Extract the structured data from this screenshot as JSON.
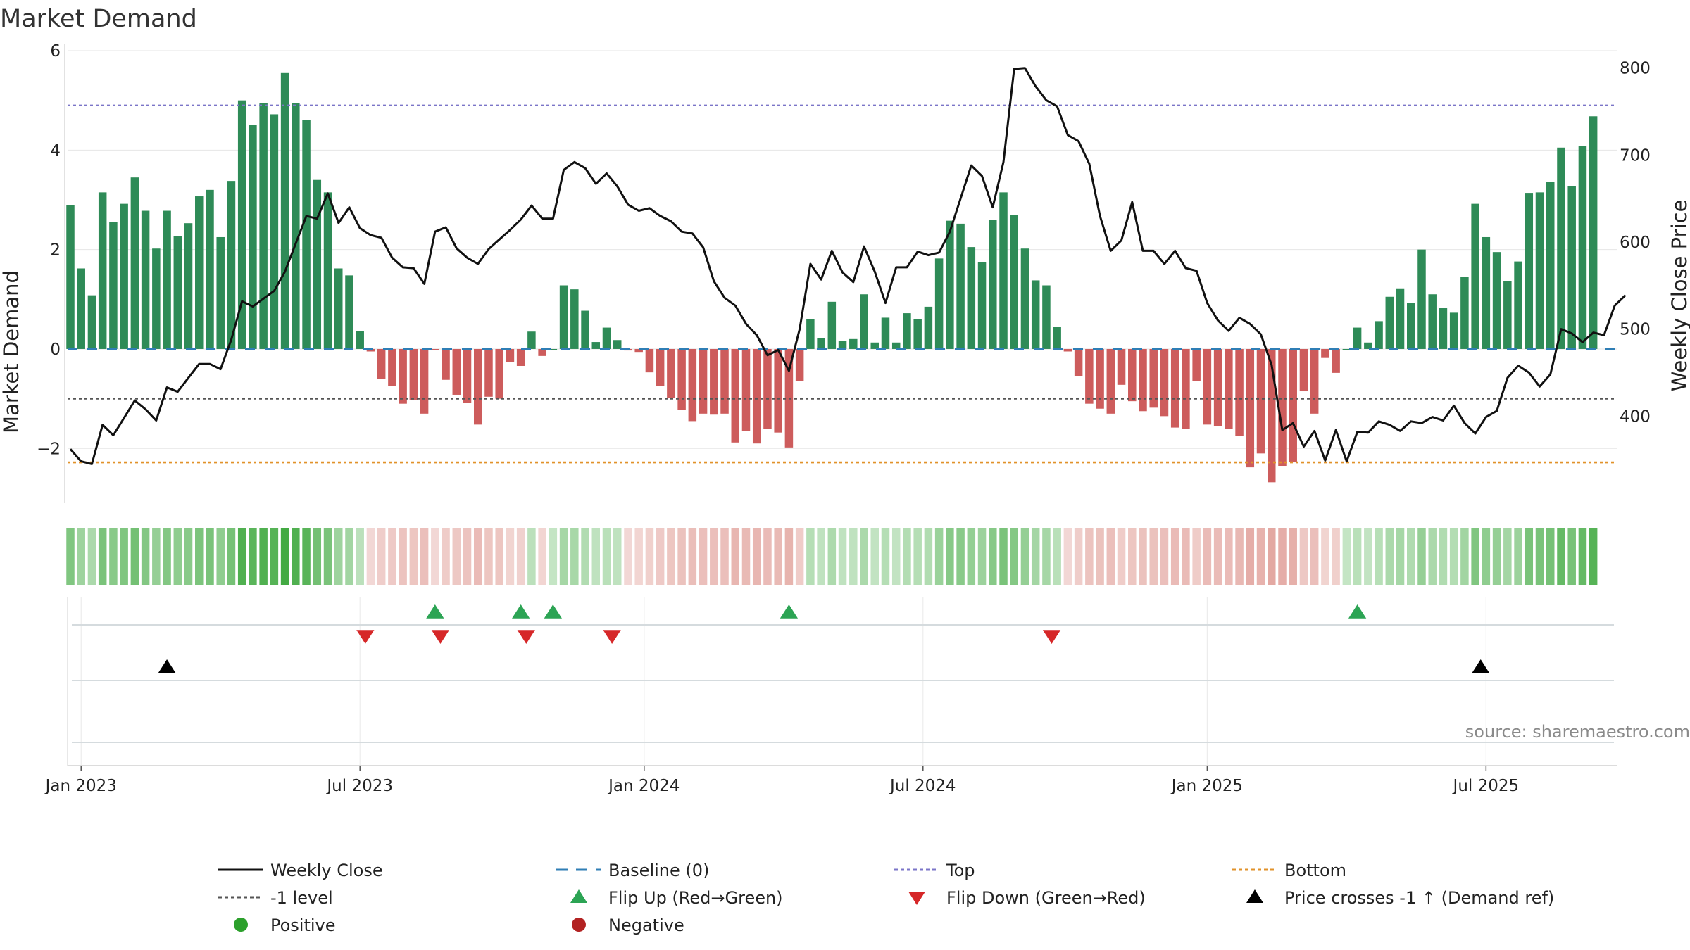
{
  "chart_data": {
    "type": "bar",
    "title": "Market Demand",
    "ylabel_left": "Market Demand",
    "ylabel_right": "Weekly Close Price",
    "ylim_left": [
      -3.1,
      6.0
    ],
    "ylim_right": [
      300,
      820
    ],
    "yticks_left": [
      {
        "v": -2,
        "label": "−2"
      },
      {
        "v": 0,
        "label": "0"
      },
      {
        "v": 2,
        "label": "2"
      },
      {
        "v": 4,
        "label": "4"
      },
      {
        "v": 6,
        "label": "6"
      }
    ],
    "yticks_right": [
      {
        "v": 400,
        "label": "400"
      },
      {
        "v": 500,
        "label": "500"
      },
      {
        "v": 600,
        "label": "600"
      },
      {
        "v": 700,
        "label": "700"
      },
      {
        "v": 800,
        "label": "800"
      }
    ],
    "x_start": "2022-12-26",
    "weeks": 145,
    "x_ticks": [
      {
        "week": 1,
        "label": "Jan 2023"
      },
      {
        "week": 27,
        "label": "Jul 2023"
      },
      {
        "week": 53.5,
        "label": "Jan 2024"
      },
      {
        "week": 79.5,
        "label": "Jul 2024"
      },
      {
        "week": 106,
        "label": "Jan 2025"
      },
      {
        "week": 132,
        "label": "Jul 2025"
      }
    ],
    "top_level": 4.9,
    "bottom_level": -2.28,
    "minus_one_level": -1,
    "market_demand": [
      2.9,
      1.62,
      1.08,
      3.15,
      2.55,
      2.92,
      3.45,
      2.78,
      2.02,
      2.78,
      2.27,
      2.53,
      3.07,
      3.2,
      2.25,
      3.38,
      5.0,
      4.5,
      4.94,
      4.72,
      5.55,
      4.95,
      4.6,
      3.4,
      3.15,
      1.62,
      1.48,
      0.36,
      -0.05,
      -0.6,
      -0.74,
      -1.1,
      -1.02,
      -1.3,
      -0.02,
      -0.62,
      -0.92,
      -1.08,
      -1.52,
      -0.96,
      -1.0,
      -0.26,
      -0.34,
      0.35,
      -0.14,
      0.0,
      1.28,
      1.2,
      0.77,
      0.14,
      0.43,
      0.18,
      -0.03,
      -0.06,
      -0.47,
      -0.74,
      -0.98,
      -1.22,
      -1.45,
      -1.3,
      -1.32,
      -1.3,
      -1.88,
      -1.65,
      -1.9,
      -1.6,
      -1.68,
      -1.98,
      -0.65,
      0.6,
      0.22,
      0.95,
      0.16,
      0.2,
      1.1,
      0.13,
      0.63,
      0.13,
      0.72,
      0.6,
      0.85,
      1.82,
      2.58,
      2.52,
      2.05,
      1.75,
      2.6,
      3.15,
      2.7,
      2.02,
      1.38,
      1.28,
      0.45,
      -0.05,
      -0.55,
      -1.1,
      -1.2,
      -1.3,
      -0.72,
      -1.05,
      -1.25,
      -1.18,
      -1.35,
      -1.58,
      -1.6,
      -0.65,
      -1.52,
      -1.55,
      -1.6,
      -1.75,
      -2.38,
      -2.1,
      -2.68,
      -2.35,
      -2.28,
      -0.85,
      -1.3,
      -0.18,
      -0.48,
      0.0,
      0.43,
      0.13,
      0.56,
      1.05,
      1.22,
      0.92,
      2.0,
      1.1,
      0.82,
      0.73,
      1.45,
      2.92,
      2.25,
      1.95,
      1.37,
      1.76,
      3.14,
      3.15,
      3.36,
      4.05,
      3.27,
      4.08,
      4.68
    ],
    "weekly_close": [
      362,
      348,
      345,
      390,
      378,
      398,
      418,
      408,
      395,
      433,
      428,
      444,
      460,
      460,
      454,
      488,
      532,
      526,
      535,
      544,
      566,
      598,
      630,
      627,
      656,
      622,
      640,
      616,
      608,
      605,
      582,
      571,
      570,
      552,
      612,
      617,
      593,
      582,
      575,
      592,
      603,
      614,
      626,
      642,
      627,
      627,
      683,
      692,
      685,
      667,
      679,
      664,
      643,
      636,
      639,
      630,
      624,
      612,
      610,
      594,
      555,
      536,
      527,
      506,
      493,
      470,
      476,
      452,
      500,
      575,
      557,
      590,
      565,
      554,
      595,
      566,
      530,
      571,
      571,
      589,
      585,
      588,
      612,
      650,
      688,
      676,
      640,
      692,
      799,
      800,
      779,
      763,
      756,
      723,
      716,
      690,
      630,
      590,
      602,
      646,
      590,
      590,
      575,
      590,
      570,
      567,
      530,
      510,
      498,
      513,
      506,
      494,
      459,
      384,
      392,
      365,
      383,
      349,
      384,
      348,
      382,
      381,
      394,
      390,
      383,
      394,
      392,
      399,
      395,
      412,
      392,
      380,
      399,
      406,
      444,
      458,
      450,
      434,
      448,
      500,
      495,
      485,
      496,
      493,
      527,
      539
    ],
    "flip_up_weeks": [
      34,
      42,
      45,
      67,
      120
    ],
    "flip_down_weeks": [
      27.5,
      34.5,
      42.5,
      50.5,
      91.5
    ],
    "price_cross_weeks": [
      9,
      131.5
    ],
    "series": [
      {
        "name": "Weekly Close",
        "color": "#111111",
        "style": "solid"
      },
      {
        "name": "Baseline (0)",
        "color": "#2f7eb5",
        "style": "dashed"
      },
      {
        "name": "Top",
        "color": "#7b75c8",
        "style": "dotted"
      },
      {
        "name": "Bottom",
        "color": "#e1922a",
        "style": "dotted"
      },
      {
        "name": "-1 level",
        "color": "#555555",
        "style": "dotted"
      },
      {
        "name": "Flip Up (Red→Green)",
        "color": "#2ca454",
        "style": "triangle-up"
      },
      {
        "name": "Flip Down (Green→Red)",
        "color": "#d62728",
        "style": "triangle-down"
      },
      {
        "name": "Price crosses -1 ↑ (Demand ref)",
        "color": "#000000",
        "style": "triangle-up"
      },
      {
        "name": "Positive",
        "color": "#2ca02c",
        "style": "circle"
      },
      {
        "name": "Negative",
        "color": "#b22222",
        "style": "circle"
      }
    ],
    "colors": {
      "positive_bar": "#2e8b57",
      "negative_bar": "#cd5c5c",
      "strip_positive": "#2ca02c",
      "strip_negative": "#c0392b"
    }
  },
  "source": "source: sharemaestro.com"
}
